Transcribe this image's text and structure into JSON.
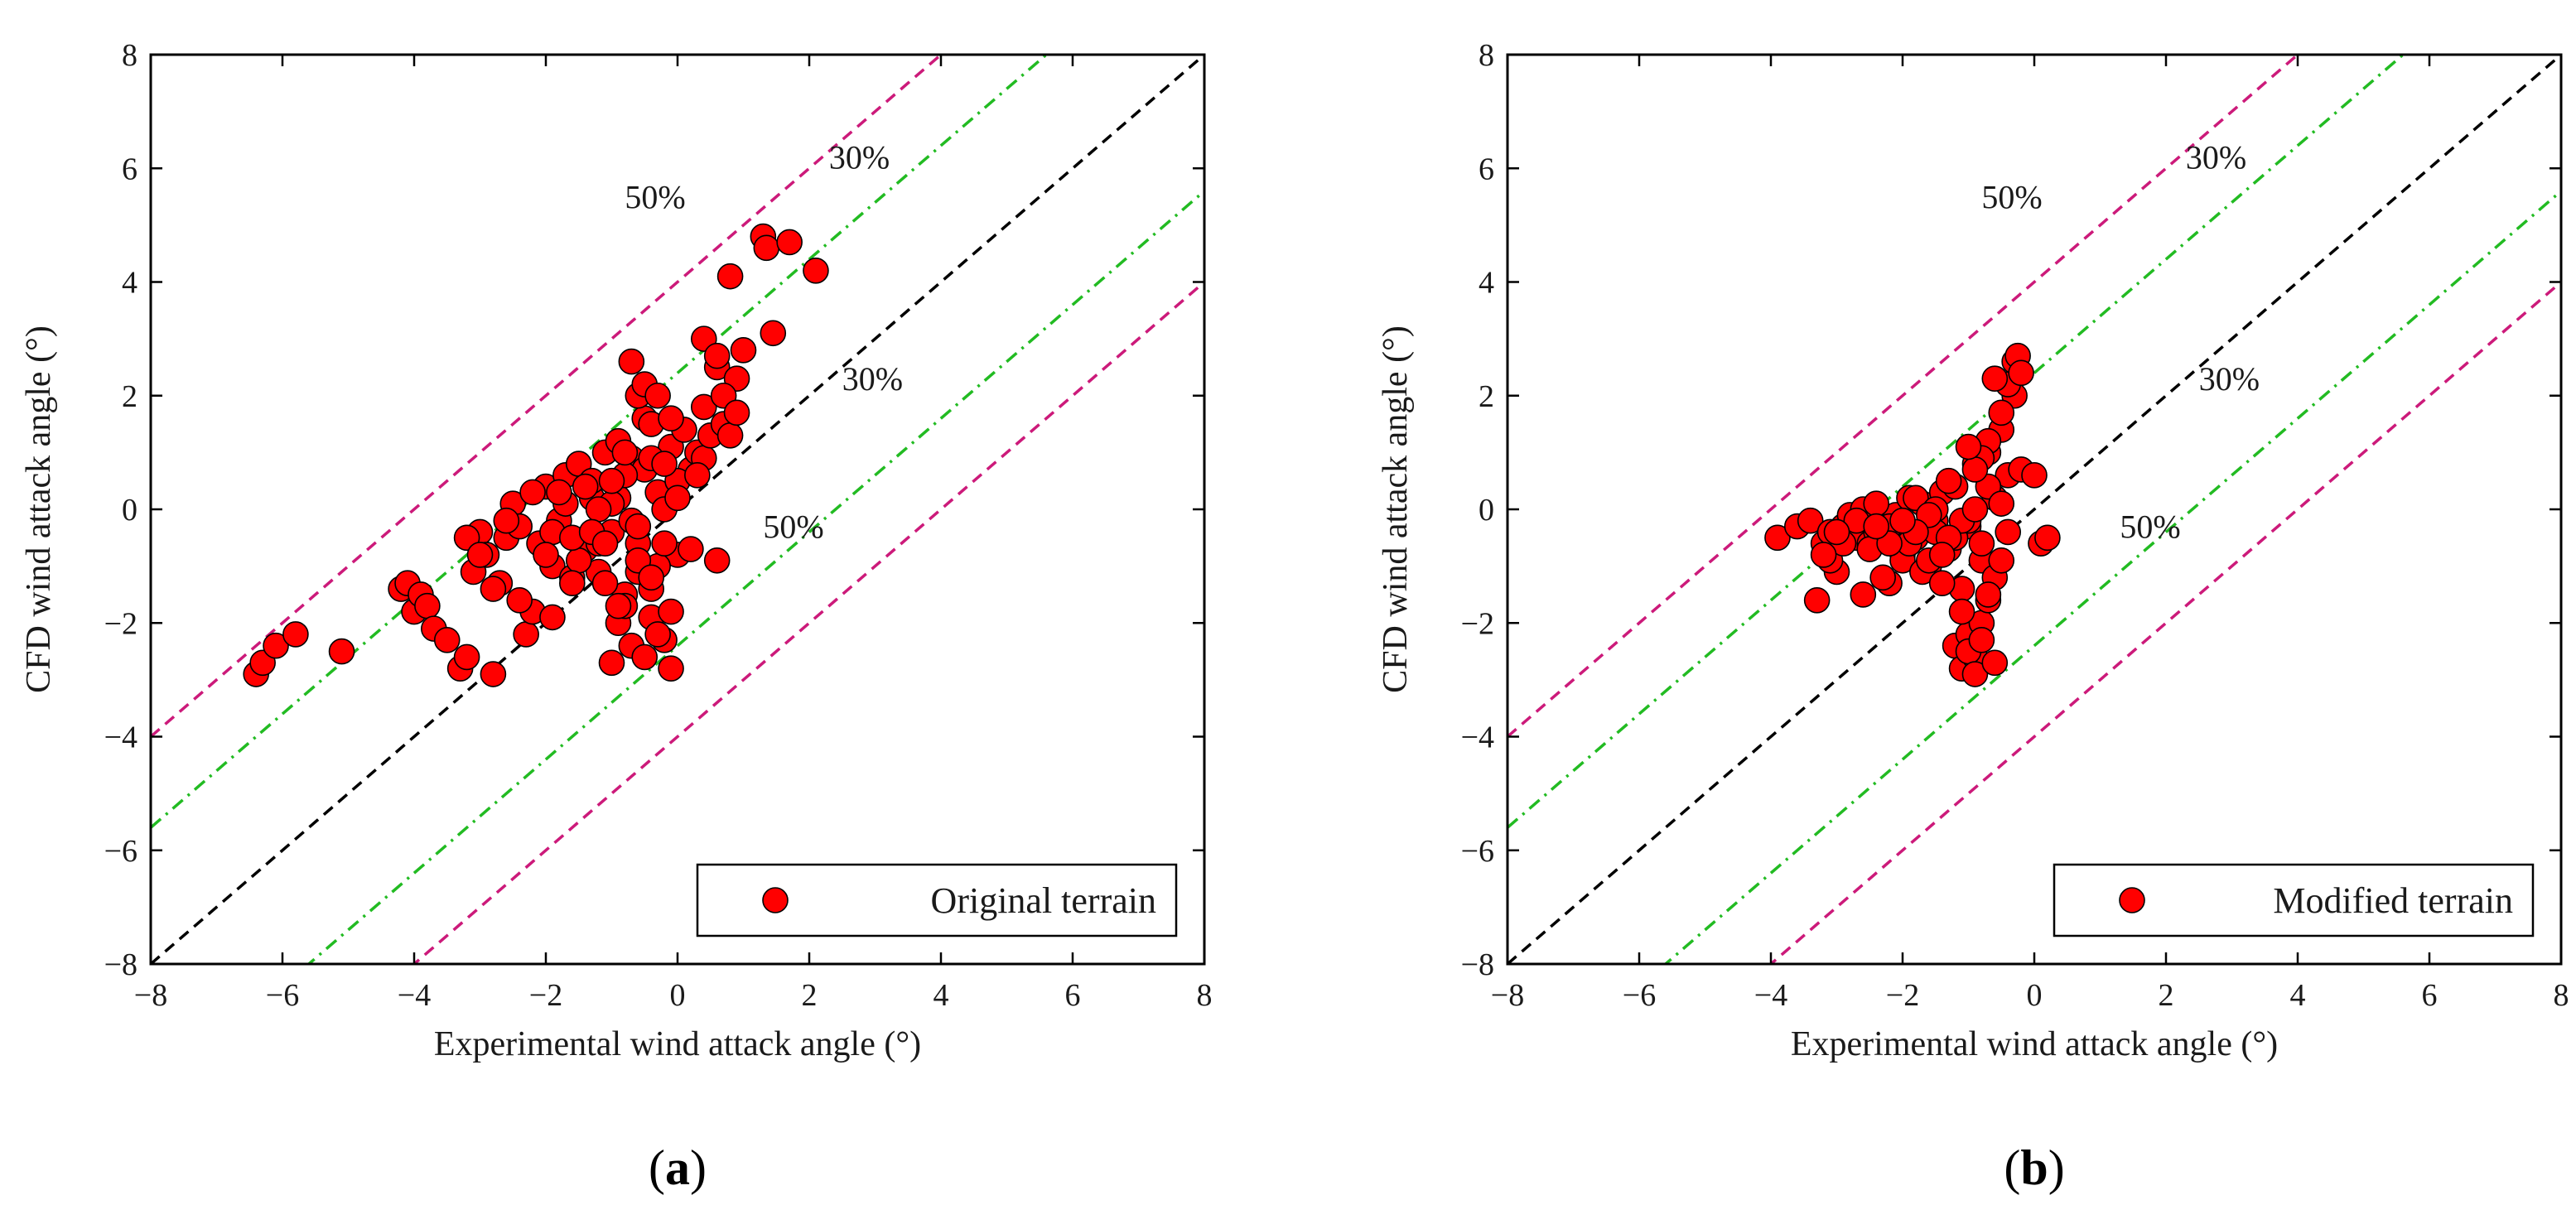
{
  "chart_data": [
    {
      "panel": "(a)",
      "panel_letter": "a",
      "type": "scatter",
      "xlabel": "Experimental wind attack angle (°)",
      "ylabel": "CFD wind attack angle (°)",
      "xlim": [
        -8,
        8
      ],
      "ylim": [
        -8,
        8
      ],
      "xticks": [
        -8,
        -6,
        -4,
        -2,
        0,
        2,
        4,
        6,
        8
      ],
      "yticks": [
        -8,
        -6,
        -4,
        -2,
        0,
        2,
        4,
        6,
        8
      ],
      "xtick_labels": [
        "−8",
        "−6",
        "−4",
        "−2",
        "0",
        "2",
        "4",
        "6",
        "8"
      ],
      "ytick_labels": [
        "−8",
        "−6",
        "−4",
        "−2",
        "0",
        "2",
        "4",
        "6",
        "8"
      ],
      "grid": false,
      "legend_position": "bottom-right",
      "series": [
        {
          "name": "Original terrain",
          "color": "#ff0000",
          "x": [
            -6.4,
            -6.3,
            -6.1,
            -5.8,
            -5.1,
            -4.2,
            -4.1,
            -4.0,
            -3.9,
            -3.8,
            -3.7,
            -3.5,
            -3.3,
            -3.2,
            -3.1,
            -3.0,
            -2.9,
            -2.8,
            -2.7,
            -2.6,
            -2.5,
            -2.4,
            -2.3,
            -2.2,
            -2.1,
            -2.0,
            -1.9,
            -1.8,
            -1.7,
            -1.6,
            -1.5,
            -1.4,
            -1.3,
            -1.2,
            -1.1,
            -1.0,
            -0.9,
            -0.8,
            -0.7,
            -0.6,
            -0.5,
            -0.4,
            -0.3,
            -0.2,
            -0.1,
            0.0,
            0.1,
            0.2,
            0.3,
            0.4,
            0.5,
            0.6,
            0.7,
            0.8,
            0.9,
            1.0,
            1.3,
            1.35,
            1.45,
            1.7,
            2.1,
            -2.2,
            -1.9,
            -1.7,
            -1.5,
            -1.3,
            -1.1,
            -0.9,
            -0.7,
            -0.5,
            -0.3,
            -2.6,
            -2.0,
            -1.8,
            -1.6,
            -1.4,
            -1.2,
            -1.0,
            -0.8,
            -0.6,
            -0.4,
            -0.2,
            0.0,
            0.2,
            0.4,
            0.6,
            -1.0,
            -0.9,
            -0.8,
            -0.7,
            -0.6,
            -0.5,
            -0.4,
            -0.3,
            -0.2,
            -0.1,
            -1.2,
            -1.0,
            -0.8,
            -0.6,
            -0.4,
            -0.2,
            0.0,
            0.3,
            0.8,
            -3.2,
            -3.0,
            -2.8,
            -2.4,
            -1.9,
            -1.6,
            -1.3,
            -1.1,
            -0.9,
            -0.6,
            -0.4,
            -0.1,
            -0.7,
            -0.5,
            -0.3,
            -0.1,
            0.4,
            0.6,
            0.7,
            0.9
          ],
          "y": [
            -2.9,
            -2.7,
            -2.4,
            -2.2,
            -2.5,
            -1.4,
            -1.3,
            -1.8,
            -1.5,
            -1.7,
            -2.1,
            -2.3,
            -2.8,
            -2.6,
            -1.1,
            -0.4,
            -0.8,
            -2.9,
            -1.3,
            -0.5,
            0.1,
            -0.3,
            -2.2,
            -1.8,
            -0.6,
            0.4,
            -1.0,
            -0.2,
            0.6,
            -1.2,
            0.8,
            -0.7,
            0.2,
            -1.1,
            1.0,
            -0.4,
            1.2,
            -1.5,
            0.9,
            -0.6,
            1.6,
            -1.9,
            0.3,
            -2.3,
            1.1,
            -0.8,
            1.4,
            0.7,
            1.0,
            0.9,
            1.3,
            2.5,
            1.5,
            4.1,
            2.3,
            2.8,
            4.8,
            4.6,
            3.1,
            4.7,
            4.2,
            0.3,
            -0.4,
            0.1,
            -0.9,
            0.5,
            -1.3,
            0.2,
            -0.2,
            0.7,
            -1.0,
            -0.2,
            -0.8,
            0.3,
            -0.5,
            0.4,
            -0.6,
            0.1,
            0.6,
            -0.3,
            0.9,
            0.0,
            0.5,
            -0.7,
            1.8,
            -0.9,
            -2.7,
            -2.0,
            -1.7,
            -2.4,
            -1.1,
            -2.6,
            -1.4,
            -2.2,
            -0.6,
            -2.8,
            0.0,
            0.5,
            1.0,
            2.0,
            1.5,
            0.8,
            0.2,
            0.6,
            1.3,
            -0.5,
            -0.8,
            -1.4,
            -1.6,
            -1.9,
            -1.3,
            -0.4,
            -0.6,
            -1.7,
            -0.9,
            -1.2,
            -1.8,
            2.6,
            2.2,
            2.0,
            1.6,
            3.0,
            2.7,
            2.0,
            1.7
          ]
        }
      ],
      "reference_lines": [
        {
          "kind": "1:1",
          "style": "dashed",
          "color": "#000000"
        },
        {
          "kind": "±30%",
          "style": "dash-dot",
          "color": "#22bb22",
          "offset": 2.4
        },
        {
          "kind": "±50%",
          "style": "dashed",
          "color": "#cc1a7a",
          "offset": 4.0
        }
      ],
      "annotations": [
        "50%",
        "30%",
        "30%",
        "50%"
      ]
    },
    {
      "panel": "(b)",
      "panel_letter": "b",
      "type": "scatter",
      "xlabel": "Experimental wind attack angle (°)",
      "ylabel": "CFD wind attack angle (°)",
      "xlim": [
        -8,
        8
      ],
      "ylim": [
        -8,
        8
      ],
      "xticks": [
        -8,
        -6,
        -4,
        -2,
        0,
        2,
        4,
        6,
        8
      ],
      "yticks": [
        -8,
        -6,
        -4,
        -2,
        0,
        2,
        4,
        6,
        8
      ],
      "xtick_labels": [
        "−8",
        "−6",
        "−4",
        "−2",
        "0",
        "2",
        "4",
        "6",
        "8"
      ],
      "ytick_labels": [
        "−8",
        "−6",
        "−4",
        "−2",
        "0",
        "2",
        "4",
        "6",
        "8"
      ],
      "grid": false,
      "legend_position": "bottom-right",
      "series": [
        {
          "name": "Modified terrain",
          "color": "#ff0000",
          "x": [
            -3.9,
            -3.6,
            -3.4,
            -3.2,
            -3.1,
            -3.0,
            -2.9,
            -2.8,
            -2.7,
            -2.6,
            -2.5,
            -2.4,
            -2.3,
            -2.2,
            -2.1,
            -2.0,
            -1.9,
            -1.8,
            -1.7,
            -1.6,
            -1.5,
            -1.4,
            -1.3,
            -1.2,
            -1.1,
            -1.0,
            -0.9,
            -0.8,
            -0.7,
            -0.6,
            -0.5,
            -0.4,
            -0.3,
            -0.2,
            0.0,
            0.1,
            0.2,
            -3.3,
            -3.1,
            -2.9,
            -2.6,
            -2.3,
            -2.0,
            -1.7,
            -1.4,
            -1.2,
            -1.0,
            -0.8,
            -0.6,
            -0.4,
            -2.7,
            -2.4,
            -2.1,
            -1.8,
            -1.5,
            -1.3,
            -1.1,
            -0.9,
            -0.7,
            -0.5,
            -1.2,
            -1.1,
            -1.0,
            -0.9,
            -0.8,
            -0.7,
            -1.1,
            -1.0,
            -0.9,
            -0.8,
            -0.7,
            -0.6,
            -0.5,
            -0.4,
            -0.3,
            -0.25,
            -0.2,
            -0.5,
            -0.6,
            -0.7,
            -0.8,
            -0.9,
            -1.0,
            -3.2,
            -3.0,
            -2.5,
            -2.2,
            -1.9,
            -1.6,
            -1.5,
            -1.3,
            -1.4,
            -1.6,
            -1.8,
            -2.0,
            -2.2,
            -2.4
          ],
          "y": [
            -0.5,
            -0.3,
            -0.2,
            -0.6,
            -0.4,
            -1.1,
            -0.3,
            -0.1,
            -0.5,
            0.0,
            -0.6,
            -0.4,
            -0.2,
            -1.3,
            -0.1,
            -0.8,
            0.2,
            -0.5,
            0.1,
            -1.0,
            -0.2,
            0.3,
            -0.7,
            0.4,
            -1.4,
            -0.3,
            0.8,
            -0.9,
            1.0,
            0.2,
            1.4,
            0.6,
            2.0,
            0.7,
            0.6,
            -0.6,
            -0.5,
            -1.6,
            -0.9,
            -0.6,
            -1.5,
            -1.2,
            -0.9,
            -1.1,
            -1.3,
            -0.5,
            -0.2,
            -0.6,
            -1.2,
            -0.4,
            -0.2,
            0.1,
            -0.3,
            0.2,
            -0.4,
            0.5,
            -0.2,
            0.0,
            0.4,
            0.1,
            -2.4,
            -2.8,
            -2.2,
            -2.6,
            -2.0,
            -1.6,
            -1.8,
            -2.5,
            -2.9,
            -2.3,
            -1.5,
            -2.7,
            -0.9,
            2.2,
            2.6,
            2.7,
            2.4,
            1.7,
            2.3,
            1.2,
            0.9,
            0.7,
            1.1,
            -0.8,
            -0.4,
            -0.7,
            -0.3,
            -0.6,
            -0.9,
            0.0,
            -0.5,
            -0.8,
            -0.1,
            -0.4,
            -0.2,
            -0.6,
            -0.3
          ]
        }
      ],
      "reference_lines": [
        {
          "kind": "1:1",
          "style": "dashed",
          "color": "#000000"
        },
        {
          "kind": "±30%",
          "style": "dash-dot",
          "color": "#22bb22",
          "offset": 2.4
        },
        {
          "kind": "±50%",
          "style": "dashed",
          "color": "#cc1a7a",
          "offset": 4.0
        }
      ],
      "annotations": [
        "50%",
        "30%",
        "30%",
        "50%"
      ]
    }
  ]
}
